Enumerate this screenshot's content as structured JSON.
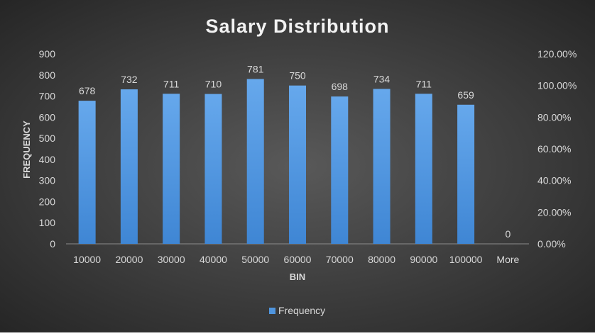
{
  "colors": {
    "bar": "#4f95de",
    "bar_light": "#66a8ec",
    "background_center": "#595959",
    "background_edge": "#262626",
    "text": "#d9d9d9",
    "title": "#f2f2f2",
    "grid": "#7a7a7a"
  },
  "chart_data": {
    "type": "bar",
    "title": "Salary Distribution",
    "xlabel": "BIN",
    "ylabel": "FREQUENCY",
    "categories": [
      "10000",
      "20000",
      "30000",
      "40000",
      "50000",
      "60000",
      "70000",
      "80000",
      "90000",
      "100000",
      "More"
    ],
    "series": [
      {
        "name": "Frequency",
        "values": [
          678,
          732,
          711,
          710,
          781,
          750,
          698,
          734,
          711,
          659,
          0
        ]
      }
    ],
    "ylim": [
      0,
      900
    ],
    "yticks": [
      0,
      100,
      200,
      300,
      400,
      500,
      600,
      700,
      800,
      900
    ],
    "y2lim": [
      0,
      1.2
    ],
    "y2ticks": [
      "0.00%",
      "20.00%",
      "40.00%",
      "60.00%",
      "80.00%",
      "100.00%",
      "120.00%"
    ],
    "grid": false,
    "legend": "bottom",
    "data_labels": true
  }
}
